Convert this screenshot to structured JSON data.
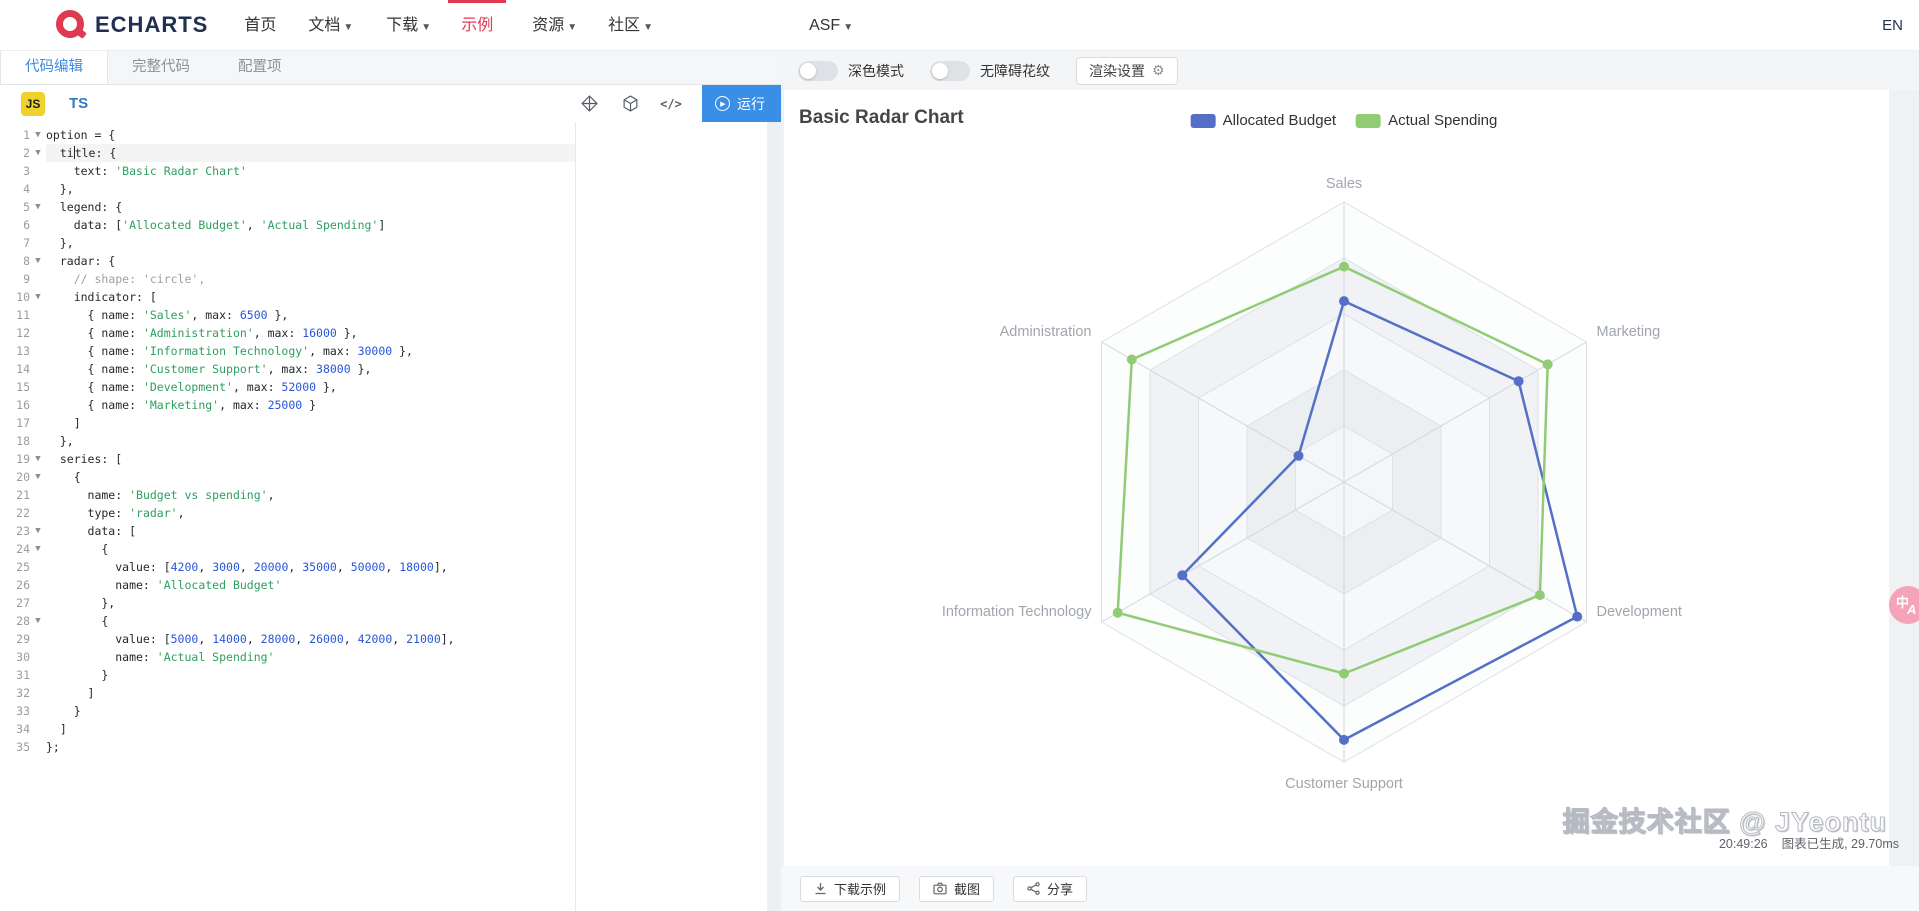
{
  "nav": {
    "logo_text": "ECHARTS",
    "items": [
      {
        "label": "首页",
        "caret": false,
        "active": false
      },
      {
        "label": "文档",
        "caret": true,
        "active": false
      },
      {
        "label": "下载",
        "caret": true,
        "active": false
      },
      {
        "label": "示例",
        "caret": false,
        "active": true
      },
      {
        "label": "资源",
        "caret": true,
        "active": false
      },
      {
        "label": "社区",
        "caret": true,
        "active": false
      },
      {
        "label": "ASF",
        "caret": true,
        "active": false
      }
    ],
    "lang": "EN"
  },
  "editor": {
    "tabs": [
      {
        "label": "代码编辑",
        "active": true
      },
      {
        "label": "完整代码",
        "active": false
      },
      {
        "label": "配置项",
        "active": false
      }
    ],
    "js_label": "JS",
    "ts_label": "TS",
    "run_label": "运行",
    "code_glyph": "</>",
    "code_lines": [
      {
        "n": 1,
        "fold": true,
        "cur": false,
        "toks": [
          {
            "t": "option = {",
            "c": "pl"
          }
        ]
      },
      {
        "n": 2,
        "fold": true,
        "cur": true,
        "toks": [
          {
            "t": "  ti",
            "c": "pl"
          },
          {
            "t": "",
            "c": "cur"
          },
          {
            "t": "tle: {",
            "c": "pl"
          }
        ]
      },
      {
        "n": 3,
        "fold": false,
        "cur": false,
        "toks": [
          {
            "t": "    text: ",
            "c": "pl"
          },
          {
            "t": "'Basic Radar Chart'",
            "c": "st"
          }
        ]
      },
      {
        "n": 4,
        "fold": false,
        "cur": false,
        "toks": [
          {
            "t": "  },",
            "c": "pl"
          }
        ]
      },
      {
        "n": 5,
        "fold": true,
        "cur": false,
        "toks": [
          {
            "t": "  legend: {",
            "c": "pl"
          }
        ]
      },
      {
        "n": 6,
        "fold": false,
        "cur": false,
        "toks": [
          {
            "t": "    data: [",
            "c": "pl"
          },
          {
            "t": "'Allocated Budget'",
            "c": "st"
          },
          {
            "t": ", ",
            "c": "pl"
          },
          {
            "t": "'Actual Spending'",
            "c": "st"
          },
          {
            "t": "]",
            "c": "pl"
          }
        ]
      },
      {
        "n": 7,
        "fold": false,
        "cur": false,
        "toks": [
          {
            "t": "  },",
            "c": "pl"
          }
        ]
      },
      {
        "n": 8,
        "fold": true,
        "cur": false,
        "toks": [
          {
            "t": "  radar: {",
            "c": "pl"
          }
        ]
      },
      {
        "n": 9,
        "fold": false,
        "cur": false,
        "toks": [
          {
            "t": "    ",
            "c": "pl"
          },
          {
            "t": "// shape: 'circle',",
            "c": "co"
          }
        ]
      },
      {
        "n": 10,
        "fold": true,
        "cur": false,
        "toks": [
          {
            "t": "    indicator: [",
            "c": "pl"
          }
        ]
      },
      {
        "n": 11,
        "fold": false,
        "cur": false,
        "toks": [
          {
            "t": "      { name: ",
            "c": "pl"
          },
          {
            "t": "'Sales'",
            "c": "st"
          },
          {
            "t": ", max: ",
            "c": "pl"
          },
          {
            "t": "6500",
            "c": "nu"
          },
          {
            "t": " },",
            "c": "pl"
          }
        ]
      },
      {
        "n": 12,
        "fold": false,
        "cur": false,
        "toks": [
          {
            "t": "      { name: ",
            "c": "pl"
          },
          {
            "t": "'Administration'",
            "c": "st"
          },
          {
            "t": ", max: ",
            "c": "pl"
          },
          {
            "t": "16000",
            "c": "nu"
          },
          {
            "t": " },",
            "c": "pl"
          }
        ]
      },
      {
        "n": 13,
        "fold": false,
        "cur": false,
        "toks": [
          {
            "t": "      { name: ",
            "c": "pl"
          },
          {
            "t": "'Information Technology'",
            "c": "st"
          },
          {
            "t": ", max: ",
            "c": "pl"
          },
          {
            "t": "30000",
            "c": "nu"
          },
          {
            "t": " },",
            "c": "pl"
          }
        ]
      },
      {
        "n": 14,
        "fold": false,
        "cur": false,
        "toks": [
          {
            "t": "      { name: ",
            "c": "pl"
          },
          {
            "t": "'Customer Support'",
            "c": "st"
          },
          {
            "t": ", max: ",
            "c": "pl"
          },
          {
            "t": "38000",
            "c": "nu"
          },
          {
            "t": " },",
            "c": "pl"
          }
        ]
      },
      {
        "n": 15,
        "fold": false,
        "cur": false,
        "toks": [
          {
            "t": "      { name: ",
            "c": "pl"
          },
          {
            "t": "'Development'",
            "c": "st"
          },
          {
            "t": ", max: ",
            "c": "pl"
          },
          {
            "t": "52000",
            "c": "nu"
          },
          {
            "t": " },",
            "c": "pl"
          }
        ]
      },
      {
        "n": 16,
        "fold": false,
        "cur": false,
        "toks": [
          {
            "t": "      { name: ",
            "c": "pl"
          },
          {
            "t": "'Marketing'",
            "c": "st"
          },
          {
            "t": ", max: ",
            "c": "pl"
          },
          {
            "t": "25000",
            "c": "nu"
          },
          {
            "t": " }",
            "c": "pl"
          }
        ]
      },
      {
        "n": 17,
        "fold": false,
        "cur": false,
        "toks": [
          {
            "t": "    ]",
            "c": "pl"
          }
        ]
      },
      {
        "n": 18,
        "fold": false,
        "cur": false,
        "toks": [
          {
            "t": "  },",
            "c": "pl"
          }
        ]
      },
      {
        "n": 19,
        "fold": true,
        "cur": false,
        "toks": [
          {
            "t": "  series: [",
            "c": "pl"
          }
        ]
      },
      {
        "n": 20,
        "fold": true,
        "cur": false,
        "toks": [
          {
            "t": "    {",
            "c": "pl"
          }
        ]
      },
      {
        "n": 21,
        "fold": false,
        "cur": false,
        "toks": [
          {
            "t": "      name: ",
            "c": "pl"
          },
          {
            "t": "'Budget vs spending'",
            "c": "st"
          },
          {
            "t": ",",
            "c": "pl"
          }
        ]
      },
      {
        "n": 22,
        "fold": false,
        "cur": false,
        "toks": [
          {
            "t": "      type: ",
            "c": "pl"
          },
          {
            "t": "'radar'",
            "c": "st"
          },
          {
            "t": ",",
            "c": "pl"
          }
        ]
      },
      {
        "n": 23,
        "fold": true,
        "cur": false,
        "toks": [
          {
            "t": "      data: [",
            "c": "pl"
          }
        ]
      },
      {
        "n": 24,
        "fold": true,
        "cur": false,
        "toks": [
          {
            "t": "        {",
            "c": "pl"
          }
        ]
      },
      {
        "n": 25,
        "fold": false,
        "cur": false,
        "toks": [
          {
            "t": "          value: [",
            "c": "pl"
          },
          {
            "t": "4200",
            "c": "nu"
          },
          {
            "t": ", ",
            "c": "pl"
          },
          {
            "t": "3000",
            "c": "nu"
          },
          {
            "t": ", ",
            "c": "pl"
          },
          {
            "t": "20000",
            "c": "nu"
          },
          {
            "t": ", ",
            "c": "pl"
          },
          {
            "t": "35000",
            "c": "nu"
          },
          {
            "t": ", ",
            "c": "pl"
          },
          {
            "t": "50000",
            "c": "nu"
          },
          {
            "t": ", ",
            "c": "pl"
          },
          {
            "t": "18000",
            "c": "nu"
          },
          {
            "t": "],",
            "c": "pl"
          }
        ]
      },
      {
        "n": 26,
        "fold": false,
        "cur": false,
        "toks": [
          {
            "t": "          name: ",
            "c": "pl"
          },
          {
            "t": "'Allocated Budget'",
            "c": "st"
          }
        ]
      },
      {
        "n": 27,
        "fold": false,
        "cur": false,
        "toks": [
          {
            "t": "        },",
            "c": "pl"
          }
        ]
      },
      {
        "n": 28,
        "fold": true,
        "cur": false,
        "toks": [
          {
            "t": "        {",
            "c": "pl"
          }
        ]
      },
      {
        "n": 29,
        "fold": false,
        "cur": false,
        "toks": [
          {
            "t": "          value: [",
            "c": "pl"
          },
          {
            "t": "5000",
            "c": "nu"
          },
          {
            "t": ", ",
            "c": "pl"
          },
          {
            "t": "14000",
            "c": "nu"
          },
          {
            "t": ", ",
            "c": "pl"
          },
          {
            "t": "28000",
            "c": "nu"
          },
          {
            "t": ", ",
            "c": "pl"
          },
          {
            "t": "26000",
            "c": "nu"
          },
          {
            "t": ", ",
            "c": "pl"
          },
          {
            "t": "42000",
            "c": "nu"
          },
          {
            "t": ", ",
            "c": "pl"
          },
          {
            "t": "21000",
            "c": "nu"
          },
          {
            "t": "],",
            "c": "pl"
          }
        ]
      },
      {
        "n": 30,
        "fold": false,
        "cur": false,
        "toks": [
          {
            "t": "          name: ",
            "c": "pl"
          },
          {
            "t": "'Actual Spending'",
            "c": "st"
          }
        ]
      },
      {
        "n": 31,
        "fold": false,
        "cur": false,
        "toks": [
          {
            "t": "        }",
            "c": "pl"
          }
        ]
      },
      {
        "n": 32,
        "fold": false,
        "cur": false,
        "toks": [
          {
            "t": "      ]",
            "c": "pl"
          }
        ]
      },
      {
        "n": 33,
        "fold": false,
        "cur": false,
        "toks": [
          {
            "t": "    }",
            "c": "pl"
          }
        ]
      },
      {
        "n": 34,
        "fold": false,
        "cur": false,
        "toks": [
          {
            "t": "  ]",
            "c": "pl"
          }
        ]
      },
      {
        "n": 35,
        "fold": false,
        "cur": false,
        "toks": [
          {
            "t": "};",
            "c": "pl"
          }
        ]
      }
    ]
  },
  "options_bar": {
    "dark_mode_label": "深色模式",
    "aria_pattern_label": "无障碍花纹",
    "render_settings_label": "渲染设置",
    "dark_mode_on": false,
    "aria_pattern_on": false
  },
  "chart_data": {
    "type": "radar",
    "title": "Basic Radar Chart",
    "shape": "polygon",
    "levels": 5,
    "legend_position": "top-center",
    "indicators": [
      {
        "name": "Sales",
        "max": 6500
      },
      {
        "name": "Administration",
        "max": 16000
      },
      {
        "name": "Information Technology",
        "max": 30000
      },
      {
        "name": "Customer Support",
        "max": 38000
      },
      {
        "name": "Development",
        "max": 52000
      },
      {
        "name": "Marketing",
        "max": 25000
      }
    ],
    "series": [
      {
        "name": "Allocated Budget",
        "color": "#5470c6",
        "values": [
          4200,
          3000,
          20000,
          35000,
          50000,
          18000
        ]
      },
      {
        "name": "Actual Spending",
        "color": "#91cc75",
        "values": [
          5000,
          14000,
          28000,
          26000,
          42000,
          21000
        ]
      }
    ],
    "axis_label_color": "#a0a6ae",
    "split_line_color": "#dde0e5",
    "axis_line_color": "#d2d6dc",
    "split_area_colors": [
      "rgba(250,251,252,0.6)",
      "rgba(205,211,222,0.25)"
    ]
  },
  "actions": {
    "download_label": "下载示例",
    "screenshot_label": "截图",
    "share_label": "分享"
  },
  "render_meta": {
    "time": "20:49:26",
    "status": "图表已生成, 29.70ms"
  },
  "watermark": "掘金技术社区 @ JYeontu",
  "translate_fab": {
    "zh": "中",
    "en": "A"
  },
  "colors": {
    "brand_red": "#e03a52",
    "run_button_blue": "#3a8ee6",
    "active_tab_blue": "#3d8ae0",
    "js_badge_yellow": "#f0d22d"
  }
}
